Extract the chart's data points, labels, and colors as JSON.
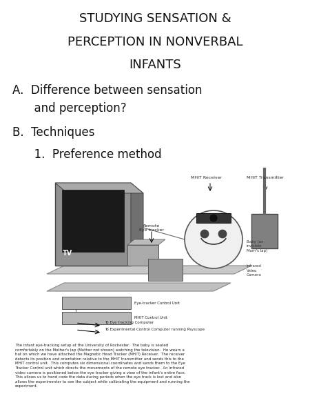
{
  "title_line1": "STUDYING SENSATION &",
  "title_line2": "PERCEPTION IN NONVERBAL",
  "title_line3": "INFANTS",
  "item_A1": "A.  Difference between sensation",
  "item_A2": "      and perception?",
  "item_B": "B.  Techniques",
  "item_1": "      1.  Preference method",
  "title_fontsize": 13,
  "body_fontsize": 12,
  "small_fontsize": 4.5,
  "caption_fontsize": 4.0,
  "bg_color": "#ffffff",
  "text_color": "#111111",
  "fig_width": 4.5,
  "fig_height": 6.0,
  "caption": "The infant eye-tracking setup at the University of Rochester.  The baby is seated\ncomfortably on the Mother's lap (Mother not shown) watching the television.  He wears a\nhat on which we have attached the Magnetic Head Tracker (MHIT) Receiver.  The receiver\ndetects its position and orientation relative to the MHIT transmitter and sends this to the\nMHIT control unit.  This computes six dimensional coordinates and sends them to the Eye\nTracker Control unit which directs the movements of the remote eye tracker.  An infrared\nvideo camera is positioned below the eye tracker giving a view of the infant's entire face.\nThis allows us to hand code the data during periods when the eye track is lost and also\nallows the experimenter to see the subject while calibrating the equipment and running the\nexperiment."
}
